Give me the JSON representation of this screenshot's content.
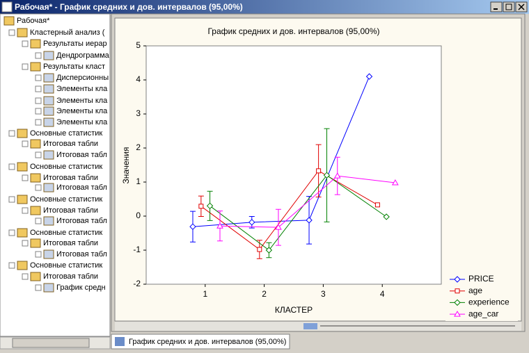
{
  "window": {
    "title": "Рабочая* - График средних и  дов. интервалов (95,00%)"
  },
  "tree": [
    "Рабочая*",
    "Кластерный анализ (",
    "Результаты иерар",
    "Дендрограмма",
    "Результаты класт",
    "Дисперсионны",
    "Элементы кла",
    "Элементы кла",
    "Элементы кла",
    "Элементы кла",
    "Основные статистик",
    "Итоговая табли",
    "Итоговая табл",
    "Основные статистик",
    "Итоговая табли",
    "Итоговая табл",
    "Основные статистик",
    "Итоговая табли",
    "Итоговая табл",
    "Основные статистик",
    "Итоговая табли",
    "Итоговая табл",
    "Основные статистик",
    "Итоговая табли",
    "График средн"
  ],
  "tab": "График средних и  дов. интервалов (95,00%)",
  "chart_data": {
    "type": "line",
    "title": "График средних и  дов. интервалов (95,00%)",
    "x_label": "КЛАСТЕР",
    "y_label": "Значения",
    "xlim": [
      0,
      5
    ],
    "ylim": [
      -2,
      5
    ],
    "xticks": [
      1,
      2,
      3,
      4
    ],
    "yticks": [
      -2,
      -1,
      0,
      1,
      2,
      3,
      4,
      5
    ],
    "legend": "right",
    "series": [
      {
        "name": "PRICE",
        "color": "#0000ff",
        "marker": "diamond",
        "x": [
          0.79,
          1.79,
          2.76,
          3.78
        ],
        "values": [
          -0.31,
          -0.18,
          -0.12,
          4.1
        ],
        "errors": [
          0.45,
          0.17,
          0.7,
          null
        ]
      },
      {
        "name": "age",
        "color": "#e00000",
        "marker": "square",
        "x": [
          0.93,
          1.92,
          2.92,
          3.92
        ],
        "values": [
          0.29,
          -0.98,
          1.33,
          0.33
        ],
        "errors": [
          0.3,
          0.27,
          0.77,
          null
        ]
      },
      {
        "name": "experience",
        "color": "#008000",
        "marker": "diamond",
        "x": [
          1.08,
          2.08,
          3.06,
          4.07
        ],
        "values": [
          0.3,
          -1.0,
          1.2,
          -0.02
        ],
        "errors": [
          0.43,
          0.22,
          1.37,
          null
        ]
      },
      {
        "name": "age_car",
        "color": "#ff00ff",
        "marker": "triangle",
        "x": [
          1.25,
          2.24,
          3.24,
          4.22
        ],
        "values": [
          -0.29,
          -0.33,
          1.18,
          0.98
        ],
        "errors": [
          0.44,
          0.53,
          0.55,
          null
        ]
      }
    ]
  }
}
